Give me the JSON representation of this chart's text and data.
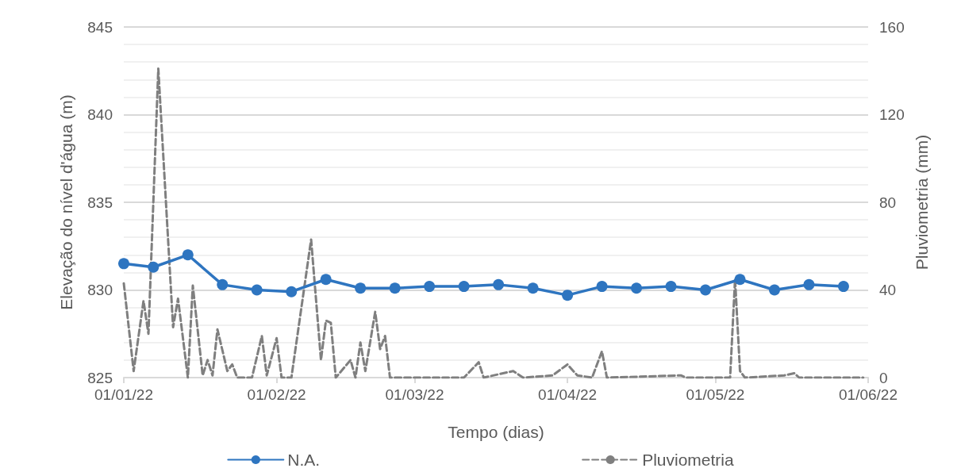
{
  "chart_data": {
    "type": "line",
    "xlabel": "Tempo (dias)",
    "ylabel": "Elevação do nível d'água (m)",
    "y2label": "Pluviometria (mm)",
    "xlim": [
      "2022-01-01",
      "2022-06-01"
    ],
    "xticks": [
      {
        "value": "2022-01-01",
        "label": "01/01/22"
      },
      {
        "value": "2022-02-01",
        "label": "01/02/22"
      },
      {
        "value": "2022-03-01",
        "label": "01/03/22"
      },
      {
        "value": "2022-04-01",
        "label": "01/04/22"
      },
      {
        "value": "2022-05-01",
        "label": "01/05/22"
      },
      {
        "value": "2022-06-01",
        "label": "01/06/22"
      }
    ],
    "ylim": [
      825,
      845
    ],
    "yticks": [
      825,
      830,
      835,
      840,
      845
    ],
    "y2lim": [
      0,
      160
    ],
    "y2ticks": [
      0,
      40,
      80,
      120,
      160
    ],
    "grid": "y",
    "legend": "bottom",
    "series": [
      {
        "name": "N.A.",
        "color": "#2e75c0",
        "marker": "circle",
        "line_style": "solid",
        "x": [
          "2022-01-01",
          "2022-01-07",
          "2022-01-14",
          "2022-01-21",
          "2022-01-28",
          "2022-02-04",
          "2022-02-11",
          "2022-02-18",
          "2022-02-25",
          "2022-03-04",
          "2022-03-11",
          "2022-03-18",
          "2022-03-25",
          "2022-04-01",
          "2022-04-08",
          "2022-04-15",
          "2022-04-22",
          "2022-04-29",
          "2022-05-06",
          "2022-05-13",
          "2022-05-20",
          "2022-05-27"
        ],
        "values": [
          831.5,
          831.3,
          832.0,
          830.3,
          830.0,
          829.9,
          830.6,
          830.1,
          830.1,
          830.2,
          830.2,
          830.3,
          830.1,
          829.7,
          830.2,
          830.1,
          830.2,
          830.0,
          830.6,
          830.0,
          830.3,
          830.2
        ]
      },
      {
        "name": "Pluviometria",
        "color": "#7f7f7f",
        "marker": "none",
        "line_style": "dashed",
        "axis": "y2",
        "x": [
          "2022-01-01",
          "2022-01-03",
          "2022-01-05",
          "2022-01-06",
          "2022-01-08",
          "2022-01-11",
          "2022-01-12",
          "2022-01-14",
          "2022-01-15",
          "2022-01-17",
          "2022-01-18",
          "2022-01-19",
          "2022-01-20",
          "2022-01-22",
          "2022-01-23",
          "2022-01-24",
          "2022-01-27",
          "2022-01-29",
          "2022-01-30",
          "2022-02-01",
          "2022-02-02",
          "2022-02-04",
          "2022-02-08",
          "2022-02-10",
          "2022-02-11",
          "2022-02-12",
          "2022-02-13",
          "2022-02-16",
          "2022-02-17",
          "2022-02-18",
          "2022-02-19",
          "2022-02-21",
          "2022-02-22",
          "2022-02-23",
          "2022-02-24",
          "2022-03-11",
          "2022-03-14",
          "2022-03-15",
          "2022-03-21",
          "2022-03-23",
          "2022-03-29",
          "2022-04-01",
          "2022-04-03",
          "2022-04-06",
          "2022-04-08",
          "2022-04-09",
          "2022-04-24",
          "2022-04-25",
          "2022-05-04",
          "2022-05-05",
          "2022-05-06",
          "2022-05-07",
          "2022-05-15",
          "2022-05-17",
          "2022-05-18",
          "2022-05-31"
        ],
        "values": [
          43,
          3,
          35,
          20,
          141,
          23,
          36,
          0,
          42,
          1,
          8,
          1,
          22,
          3,
          6,
          0,
          0,
          19,
          1,
          18,
          0,
          0,
          63,
          8,
          26,
          25,
          0,
          8,
          0,
          16,
          3,
          30,
          13,
          19,
          0,
          0,
          7,
          0,
          3,
          0,
          1,
          6,
          1,
          0,
          12,
          0,
          1,
          0,
          0,
          45,
          3,
          0,
          1,
          2,
          0,
          0
        ]
      }
    ]
  }
}
